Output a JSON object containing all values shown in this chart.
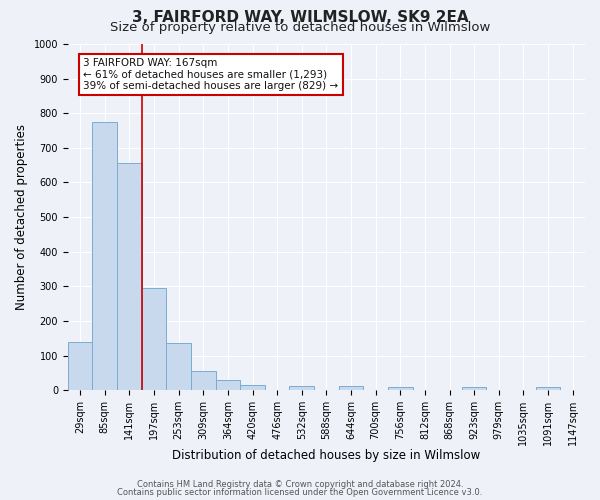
{
  "title": "3, FAIRFORD WAY, WILMSLOW, SK9 2EA",
  "subtitle": "Size of property relative to detached houses in Wilmslow",
  "xlabel": "Distribution of detached houses by size in Wilmslow",
  "ylabel": "Number of detached properties",
  "bar_labels": [
    "29sqm",
    "85sqm",
    "141sqm",
    "197sqm",
    "253sqm",
    "309sqm",
    "364sqm",
    "420sqm",
    "476sqm",
    "532sqm",
    "588sqm",
    "644sqm",
    "700sqm",
    "756sqm",
    "812sqm",
    "868sqm",
    "923sqm",
    "979sqm",
    "1035sqm",
    "1091sqm",
    "1147sqm"
  ],
  "bar_values": [
    140,
    775,
    655,
    295,
    135,
    57,
    30,
    14,
    0,
    13,
    0,
    12,
    0,
    10,
    0,
    0,
    8,
    0,
    0,
    9,
    0
  ],
  "bar_color": "#c8d9ee",
  "bar_edge_color": "#7aadd4",
  "vline_x": 2.5,
  "vline_color": "#cc0000",
  "ylim": [
    0,
    1000
  ],
  "ann_line1": "3 FAIRFORD WAY: 167sqm",
  "ann_line2": "← 61% of detached houses are smaller (1,293)",
  "ann_line3": "39% of semi-detached houses are larger (829) →",
  "annotation_box_color": "#cc0000",
  "footer_line1": "Contains HM Land Registry data © Crown copyright and database right 2024.",
  "footer_line2": "Contains public sector information licensed under the Open Government Licence v3.0.",
  "bg_color": "#eef2f8",
  "grid_color": "#ffffff",
  "title_fontsize": 11,
  "subtitle_fontsize": 9.5,
  "axis_label_fontsize": 8.5,
  "tick_fontsize": 7,
  "footer_fontsize": 6,
  "annotation_fontsize": 7.5
}
